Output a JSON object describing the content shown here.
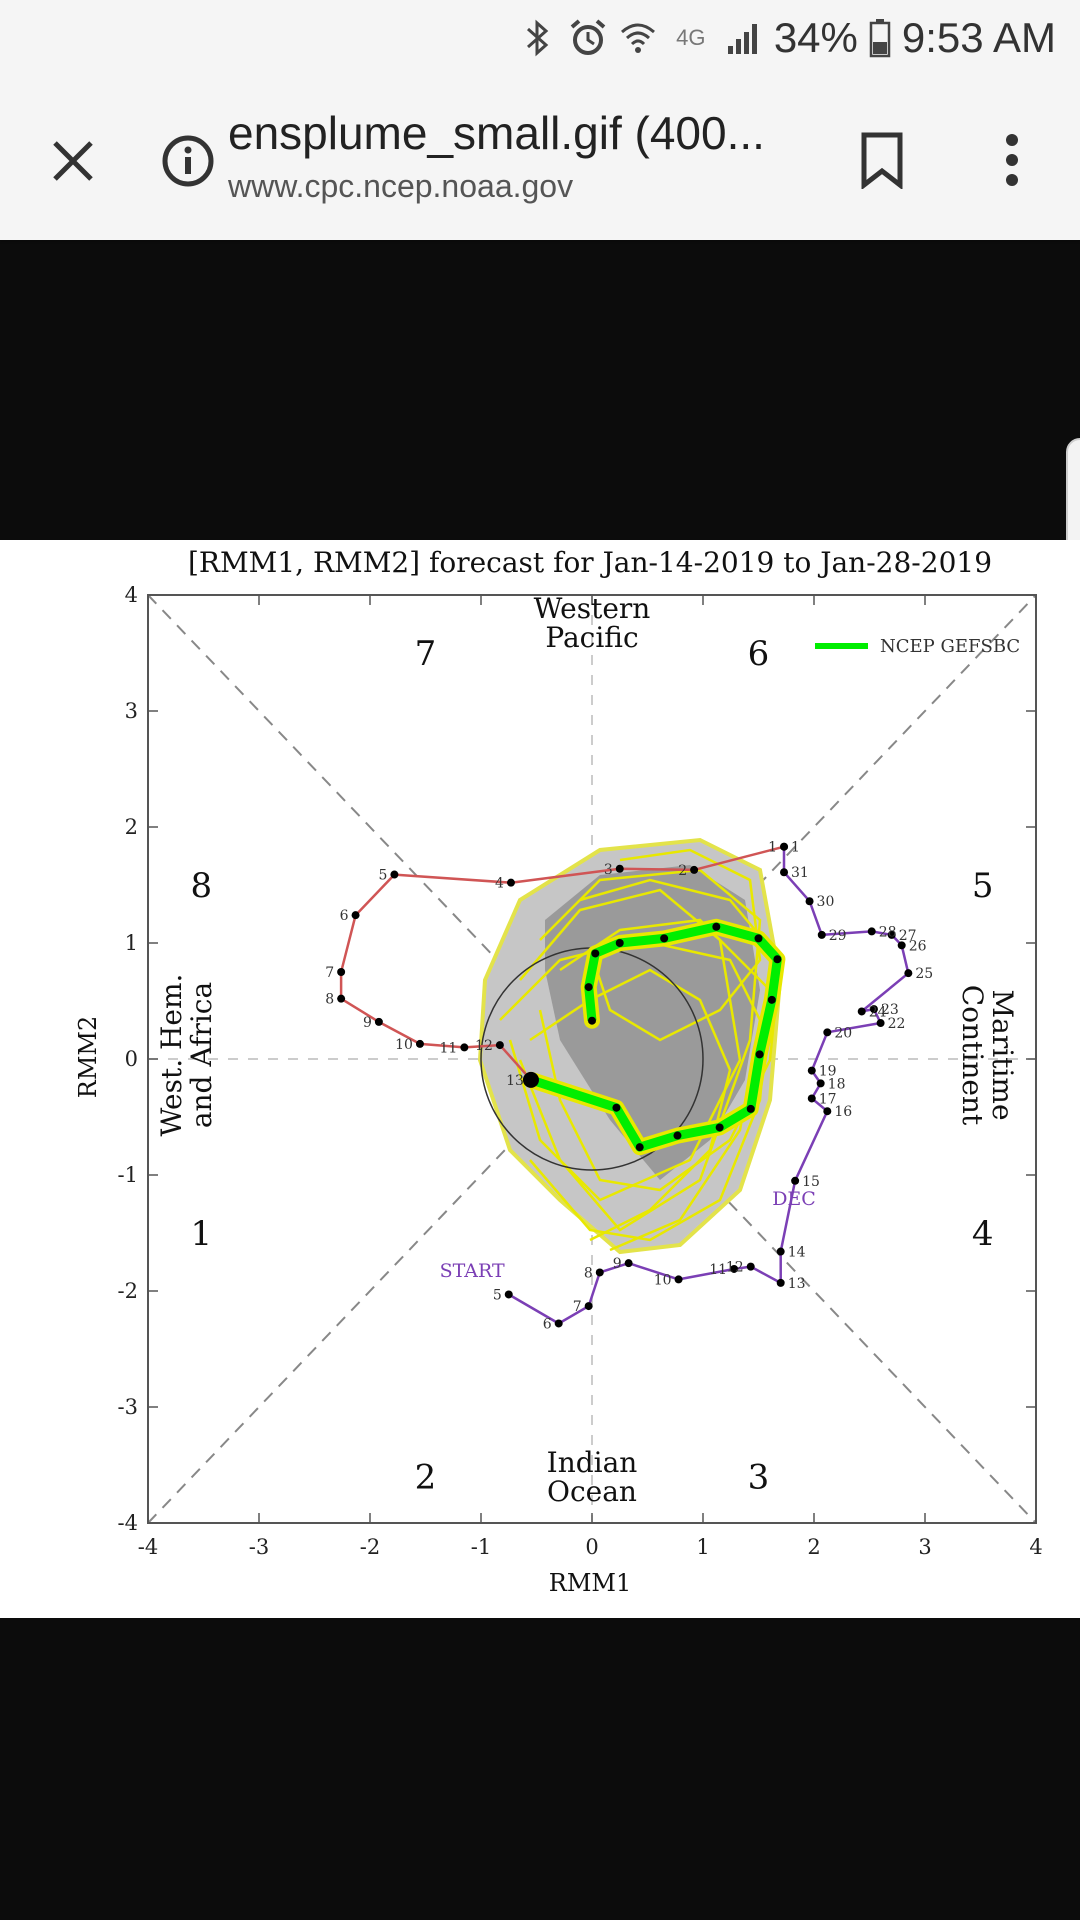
{
  "status_bar": {
    "icons": [
      "bluetooth-icon",
      "alarm-icon",
      "wifi-icon",
      "4g-icon",
      "signal-icon",
      "battery-icon"
    ],
    "network": "4G",
    "battery": "34%",
    "time": "9:53 AM"
  },
  "toolbar": {
    "title": "ensplume_small.gif (400...",
    "url": "www.cpc.ncep.noaa.gov",
    "close_icon": "close-icon",
    "info_icon": "info-icon",
    "bookmark_icon": "bookmark-icon",
    "menu_icon": "more-vert-icon"
  },
  "chart_data": {
    "type": "scatter",
    "title": "[RMM1, RMM2] forecast for Jan-14-2019 to Jan-28-2019",
    "xlabel": "RMM1",
    "ylabel": "RMM2",
    "xlim": [
      -4,
      4
    ],
    "ylim": [
      -4,
      4
    ],
    "xticks": [
      "-4",
      "-3",
      "-2",
      "-1",
      "0",
      "1",
      "2",
      "3",
      "4"
    ],
    "yticks": [
      "4",
      "3",
      "2",
      "1",
      "0",
      "-1",
      "-2",
      "-3",
      "-4"
    ],
    "phase_labels": [
      {
        "text": "1",
        "x": -3.52,
        "y": -1.5
      },
      {
        "text": "2",
        "x": -1.5,
        "y": -3.6
      },
      {
        "text": "3",
        "x": 1.5,
        "y": -3.6
      },
      {
        "text": "4",
        "x": 3.52,
        "y": -1.5
      },
      {
        "text": "5",
        "x": 3.52,
        "y": 1.5
      },
      {
        "text": "6",
        "x": 1.5,
        "y": 3.5
      },
      {
        "text": "7",
        "x": -1.5,
        "y": 3.5
      },
      {
        "text": "8",
        "x": -3.52,
        "y": 1.5
      }
    ],
    "region_labels": {
      "top": [
        "Western",
        "Pacific"
      ],
      "bottom": [
        "Indian",
        "Ocean"
      ],
      "left": [
        "West. Hem.",
        "and Africa"
      ],
      "right": [
        "Maritime",
        "Continent"
      ]
    },
    "legend": {
      "label": "NCEP GEFSBC",
      "color": "#00ee00",
      "position": "top-right"
    },
    "annotations": [
      {
        "text": "START",
        "x": -1.08,
        "y": -1.88,
        "color": "#7b3fb5"
      },
      {
        "text": "DEC",
        "x": 1.82,
        "y": -1.26,
        "color": "#7b3fb5"
      }
    ],
    "series": [
      {
        "color": "#7b3fb5",
        "points": [
          {
            "x": -0.75,
            "y": -2.03,
            "label": "5"
          },
          {
            "x": -0.3,
            "y": -2.28,
            "label": "6"
          },
          {
            "x": -0.03,
            "y": -2.13,
            "label": "7"
          },
          {
            "x": 0.07,
            "y": -1.84,
            "label": "8"
          },
          {
            "x": 0.33,
            "y": -1.76,
            "label": "9"
          },
          {
            "x": 0.78,
            "y": -1.9,
            "label": "10"
          },
          {
            "x": 1.28,
            "y": -1.81,
            "label": "11"
          },
          {
            "x": 1.43,
            "y": -1.79,
            "label": "12"
          },
          {
            "x": 1.7,
            "y": -1.93,
            "label": "13"
          },
          {
            "x": 1.7,
            "y": -1.66,
            "label": "14"
          },
          {
            "x": 1.83,
            "y": -1.05,
            "label": "15"
          },
          {
            "x": 2.12,
            "y": -0.45,
            "label": "16"
          },
          {
            "x": 1.98,
            "y": -0.34,
            "label": "17"
          },
          {
            "x": 2.06,
            "y": -0.21,
            "label": "18"
          },
          {
            "x": 1.98,
            "y": -0.1,
            "label": "19"
          },
          {
            "x": 2.12,
            "y": 0.23,
            "label": "20"
          },
          {
            "x": 2.6,
            "y": 0.31,
            "label": "22"
          },
          {
            "x": 2.54,
            "y": 0.43,
            "label": "23"
          },
          {
            "x": 2.43,
            "y": 0.41,
            "label": "24"
          },
          {
            "x": 2.85,
            "y": 0.74,
            "label": "25"
          },
          {
            "x": 2.79,
            "y": 0.98,
            "label": "26"
          },
          {
            "x": 2.7,
            "y": 1.07,
            "label": "27"
          },
          {
            "x": 2.52,
            "y": 1.1,
            "label": "28"
          },
          {
            "x": 2.07,
            "y": 1.07,
            "label": "29"
          },
          {
            "x": 1.96,
            "y": 1.36,
            "label": "30"
          },
          {
            "x": 1.73,
            "y": 1.61,
            "label": "31"
          },
          {
            "x": 1.73,
            "y": 1.83,
            "label": "1"
          }
        ]
      },
      {
        "color": "#d05555",
        "points": [
          {
            "x": 1.73,
            "y": 1.83,
            "label": "1"
          },
          {
            "x": 0.92,
            "y": 1.63,
            "label": "2"
          },
          {
            "x": 0.25,
            "y": 1.64,
            "label": "3"
          },
          {
            "x": -0.73,
            "y": 1.52,
            "label": "4"
          },
          {
            "x": -1.78,
            "y": 1.59,
            "label": "5"
          },
          {
            "x": -2.13,
            "y": 1.24,
            "label": "6"
          },
          {
            "x": -2.26,
            "y": 0.75,
            "label": "7"
          },
          {
            "x": -2.26,
            "y": 0.52,
            "label": "8"
          },
          {
            "x": -1.92,
            "y": 0.32,
            "label": "9"
          },
          {
            "x": -1.55,
            "y": 0.13,
            "label": "10"
          },
          {
            "x": -1.15,
            "y": 0.1,
            "label": "11"
          },
          {
            "x": -0.83,
            "y": 0.12,
            "label": "12"
          },
          {
            "x": -0.55,
            "y": -0.18,
            "label": "13"
          }
        ]
      },
      {
        "name": "NCEP GEFSBC",
        "color": "#00ee00",
        "points": [
          {
            "x": -0.55,
            "y": -0.18
          },
          {
            "x": 0.22,
            "y": -0.42
          },
          {
            "x": 0.43,
            "y": -0.76
          },
          {
            "x": 0.77,
            "y": -0.66
          },
          {
            "x": 1.15,
            "y": -0.59
          },
          {
            "x": 1.43,
            "y": -0.43
          },
          {
            "x": 1.51,
            "y": 0.04
          },
          {
            "x": 1.62,
            "y": 0.51
          },
          {
            "x": 1.67,
            "y": 0.86
          },
          {
            "x": 1.5,
            "y": 1.04
          },
          {
            "x": 1.12,
            "y": 1.14
          },
          {
            "x": 0.65,
            "y": 1.04
          },
          {
            "x": 0.25,
            "y": 1.0
          },
          {
            "x": 0.03,
            "y": 0.91
          },
          {
            "x": -0.03,
            "y": 0.62
          },
          {
            "x": 0.0,
            "y": 0.33
          }
        ]
      }
    ]
  }
}
